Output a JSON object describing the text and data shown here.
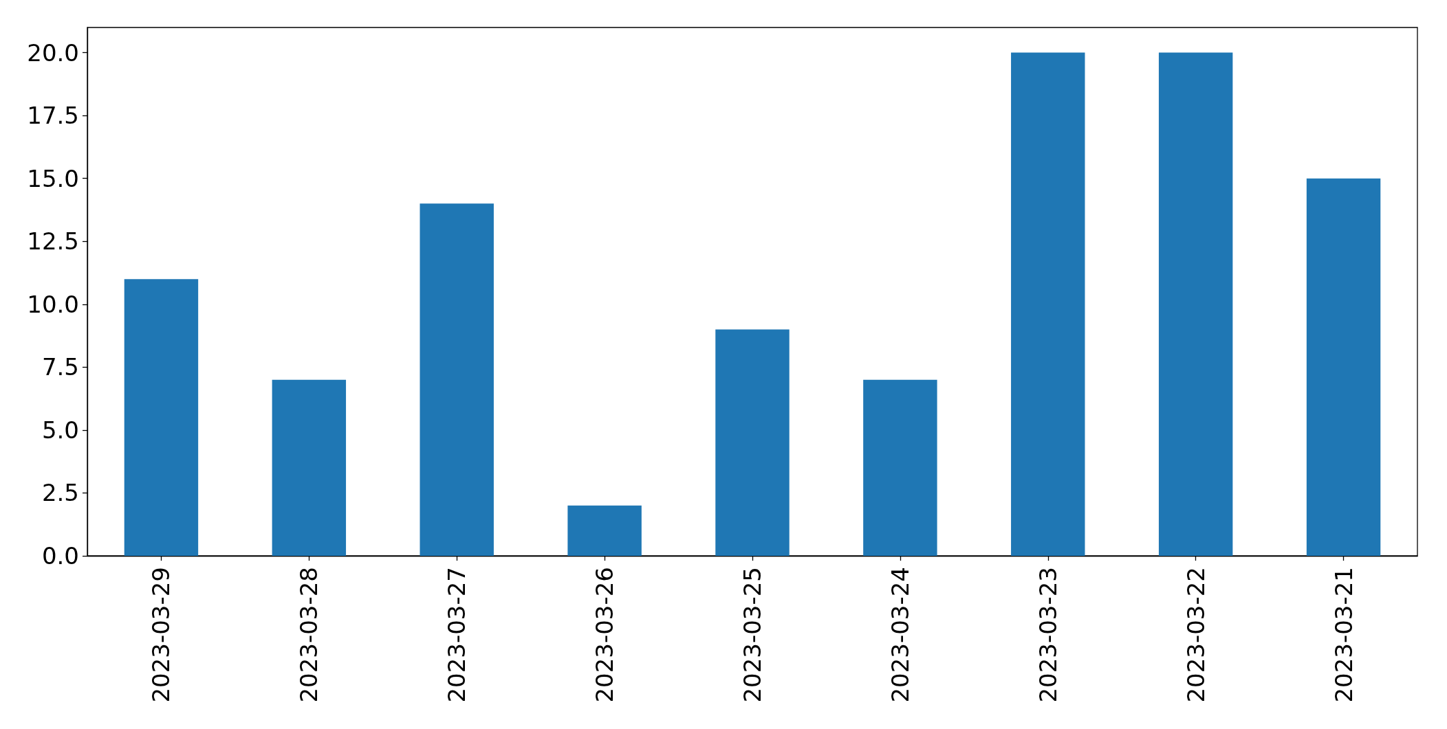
{
  "chart_data": {
    "type": "bar",
    "categories": [
      "2023-03-29",
      "2023-03-28",
      "2023-03-27",
      "2023-03-26",
      "2023-03-25",
      "2023-03-24",
      "2023-03-23",
      "2023-03-22",
      "2023-03-21"
    ],
    "values": [
      11,
      7,
      14,
      2,
      9,
      7,
      20,
      20,
      15
    ],
    "color": "#1f77b4",
    "ylim": [
      0,
      21
    ],
    "yticks": [
      {
        "value": 0,
        "label": "0.0"
      },
      {
        "value": 2.5,
        "label": "2.5"
      },
      {
        "value": 5,
        "label": "5.0"
      },
      {
        "value": 7.5,
        "label": "7.5"
      },
      {
        "value": 10,
        "label": "10.0"
      },
      {
        "value": 12.5,
        "label": "12.5"
      },
      {
        "value": 15,
        "label": "15.0"
      },
      {
        "value": 17.5,
        "label": "17.5"
      },
      {
        "value": 20,
        "label": "20.0"
      }
    ],
    "grid": false
  }
}
